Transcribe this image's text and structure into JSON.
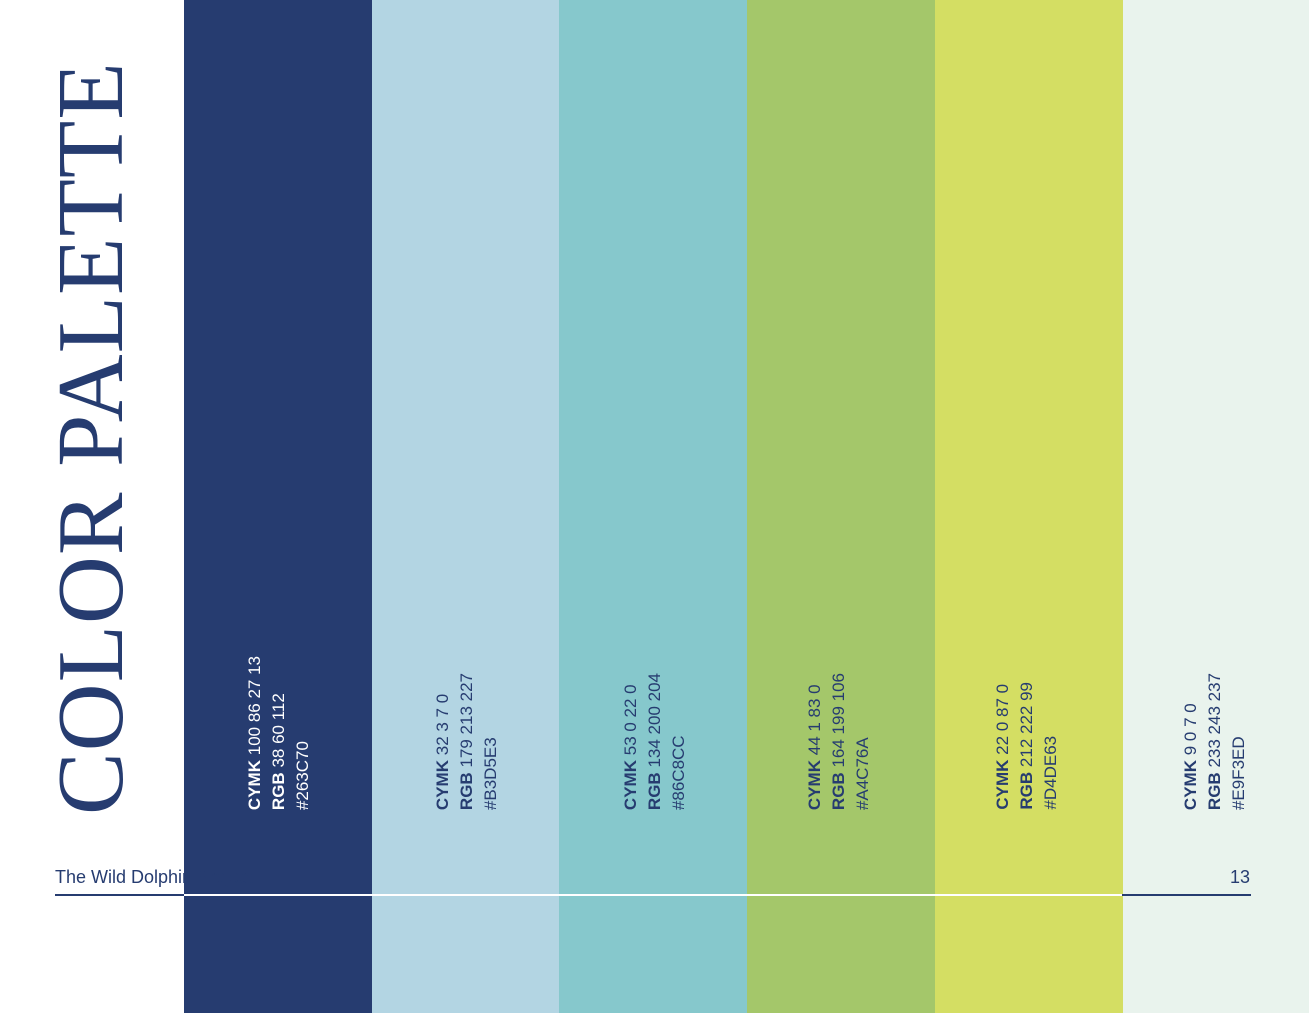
{
  "page": {
    "title": "COLOR PALETTE",
    "footer_title": "The Wild Dolphin Project",
    "page_number": "13"
  },
  "colors": {
    "primary": "#263C70",
    "white": "#FFFFFF"
  },
  "swatches": [
    {
      "cymk_label": "CYMK",
      "cymk": "100 86 27 13",
      "rgb_label": "RGB",
      "rgb": "38 60 112",
      "hex": "#263C70",
      "text_color": "#FFFFFF"
    },
    {
      "cymk_label": "CYMK",
      "cymk": "32 3 7 0",
      "rgb_label": "RGB",
      "rgb": "179 213 227",
      "hex": "#B3D5E3",
      "text_color": "#263C70"
    },
    {
      "cymk_label": "CYMK",
      "cymk": "53 0 22 0",
      "rgb_label": "RGB",
      "rgb": "134 200 204",
      "hex": "#86C8CC",
      "text_color": "#263C70"
    },
    {
      "cymk_label": "CYMK",
      "cymk": "44 1 83 0",
      "rgb_label": "RGB",
      "rgb": "164 199 106",
      "hex": "#A4C76A",
      "text_color": "#263C70"
    },
    {
      "cymk_label": "CYMK",
      "cymk": "22 0 87 0",
      "rgb_label": "RGB",
      "rgb": "212 222 99",
      "hex": "#D4DE63",
      "text_color": "#263C70"
    },
    {
      "cymk_label": "CYMK",
      "cymk": "9 0 7 0",
      "rgb_label": "RGB",
      "rgb": "233 243 237",
      "hex": "#E9F3ED",
      "text_color": "#263C70"
    }
  ]
}
